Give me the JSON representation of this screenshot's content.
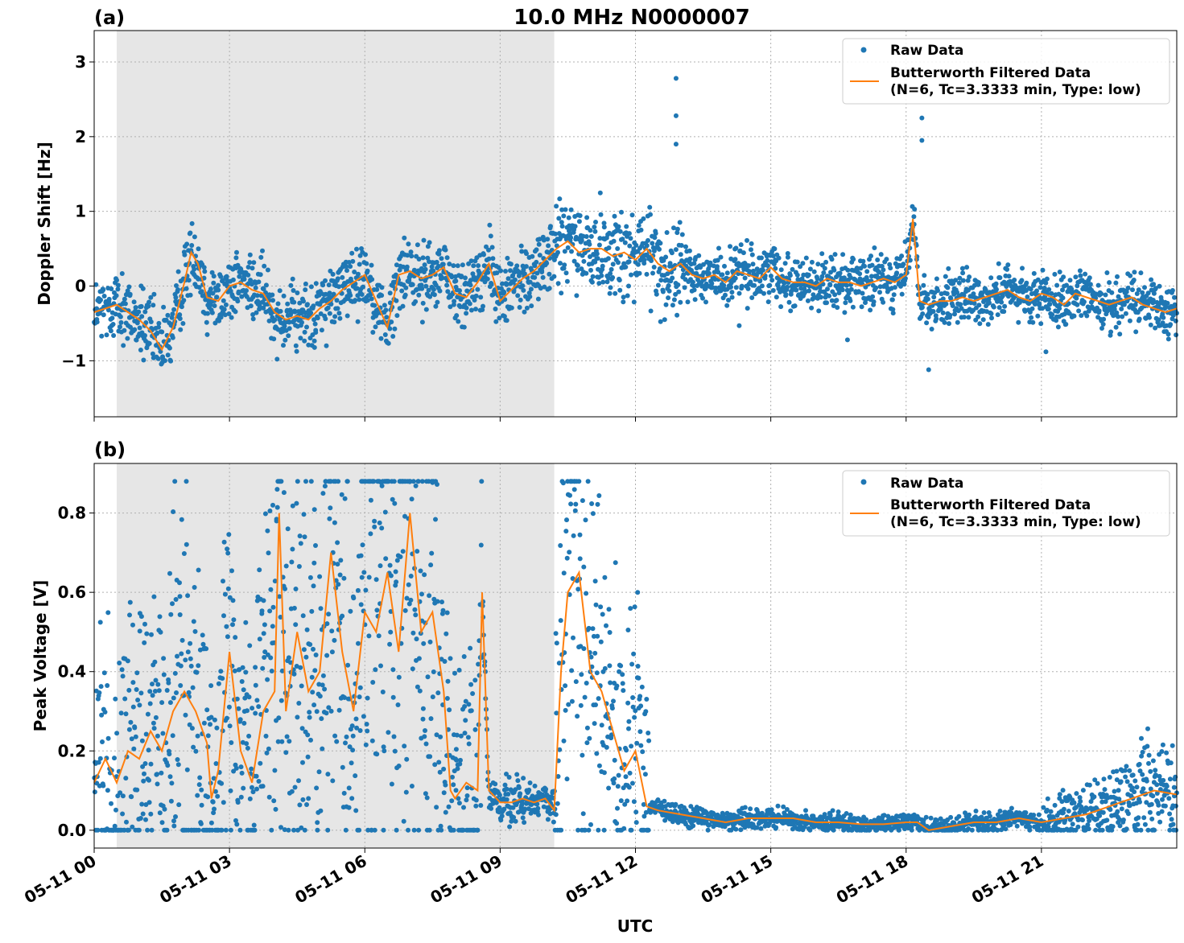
{
  "figure": {
    "title": "10.0 MHz N0000007",
    "xlabel": "UTC"
  },
  "legend": {
    "raw_label": "Raw Data",
    "filtered_label_line1": "Butterworth Filtered Data",
    "filtered_label_line2": "(N=6, Tc=3.3333 min, Type: low)"
  },
  "colors": {
    "raw": "#1f77b4",
    "filtered": "#ff7f0e",
    "shade": "#e6e6e6",
    "grid": "#b0b0b0"
  },
  "chart_data": [
    {
      "type": "scatter",
      "panel_label": "(a)",
      "ylabel": "Doppler Shift [Hz]",
      "xlim": [
        0,
        24
      ],
      "ylim": [
        -1.75,
        3.42
      ],
      "x_unit": "hours UTC on 05-11",
      "x_ticks": [
        0,
        3,
        6,
        9,
        12,
        15,
        18,
        21
      ],
      "x_tick_labels": [
        "05-11 00",
        "05-11 03",
        "05-11 06",
        "05-11 09",
        "05-11 12",
        "05-11 15",
        "05-11 18",
        "05-11 21"
      ],
      "y_ticks": [
        -1,
        0,
        1,
        2,
        3
      ],
      "y_tick_labels": [
        "−1",
        "0",
        "1",
        "2",
        "3"
      ],
      "grid": true,
      "legend_position": "top-right",
      "shaded_x_range": [
        0.5,
        10.2
      ],
      "series": [
        {
          "name": "Butterworth Filtered Data",
          "x": [
            0,
            0.25,
            0.5,
            0.75,
            1.0,
            1.25,
            1.5,
            1.75,
            2.0,
            2.15,
            2.3,
            2.5,
            2.75,
            3.0,
            3.25,
            3.5,
            3.75,
            4.0,
            4.25,
            4.5,
            4.75,
            5.0,
            5.25,
            5.5,
            5.75,
            6.0,
            6.25,
            6.5,
            6.75,
            7.0,
            7.25,
            7.5,
            7.75,
            8.0,
            8.25,
            8.5,
            8.75,
            9.0,
            9.25,
            9.5,
            9.75,
            10.0,
            10.25,
            10.5,
            10.75,
            11.0,
            11.25,
            11.5,
            11.75,
            12.0,
            12.25,
            12.5,
            12.75,
            13.0,
            13.25,
            13.5,
            13.75,
            14.0,
            14.25,
            14.5,
            14.75,
            15.0,
            15.25,
            15.5,
            15.75,
            16.0,
            16.25,
            16.5,
            16.75,
            17.0,
            17.25,
            17.5,
            17.75,
            18.0,
            18.15,
            18.3,
            18.5,
            18.75,
            19.0,
            19.25,
            19.5,
            19.75,
            20.0,
            20.25,
            20.5,
            20.75,
            21.0,
            21.25,
            21.5,
            21.75,
            22.0,
            22.25,
            22.5,
            22.75,
            23.0,
            23.25,
            23.5,
            23.75,
            24.0
          ],
          "y": [
            -0.35,
            -0.3,
            -0.25,
            -0.35,
            -0.45,
            -0.6,
            -0.85,
            -0.55,
            0.05,
            0.45,
            0.3,
            -0.15,
            -0.2,
            0.0,
            0.05,
            -0.05,
            -0.1,
            -0.35,
            -0.45,
            -0.4,
            -0.45,
            -0.3,
            -0.2,
            -0.05,
            0.05,
            0.15,
            -0.2,
            -0.55,
            0.15,
            0.2,
            0.1,
            0.15,
            0.25,
            -0.1,
            -0.15,
            0.05,
            0.3,
            -0.2,
            -0.05,
            0.1,
            0.2,
            0.35,
            0.5,
            0.6,
            0.45,
            0.5,
            0.5,
            0.4,
            0.45,
            0.35,
            0.5,
            0.3,
            0.2,
            0.3,
            0.15,
            0.1,
            0.15,
            0.05,
            0.2,
            0.15,
            0.1,
            0.25,
            0.1,
            0.05,
            0.05,
            0.0,
            0.1,
            0.05,
            0.05,
            0.0,
            0.05,
            0.1,
            0.05,
            0.15,
            0.9,
            -0.2,
            -0.25,
            -0.2,
            -0.2,
            -0.15,
            -0.2,
            -0.15,
            -0.1,
            -0.05,
            -0.15,
            -0.2,
            -0.1,
            -0.15,
            -0.25,
            -0.1,
            -0.15,
            -0.2,
            -0.25,
            -0.2,
            -0.15,
            -0.25,
            -0.3,
            -0.35,
            -0.3
          ]
        },
        {
          "name": "Raw Data",
          "outliers": [
            [
              12.9,
              2.78
            ],
            [
              12.9,
              2.28
            ],
            [
              12.9,
              1.9
            ],
            [
              18.35,
              2.25
            ],
            [
              18.35,
              1.95
            ],
            [
              18.5,
              -1.12
            ],
            [
              21.1,
              -0.88
            ],
            [
              14.3,
              -0.53
            ],
            [
              16.7,
              -0.72
            ]
          ]
        }
      ]
    },
    {
      "type": "scatter",
      "panel_label": "(b)",
      "ylabel": "Peak Voltage [V]",
      "xlim": [
        0,
        24
      ],
      "ylim": [
        -0.045,
        0.925
      ],
      "x_unit": "hours UTC on 05-11",
      "x_ticks": [
        0,
        3,
        6,
        9,
        12,
        15,
        18,
        21
      ],
      "x_tick_labels": [
        "05-11 00",
        "05-11 03",
        "05-11 06",
        "05-11 09",
        "05-11 12",
        "05-11 15",
        "05-11 18",
        "05-11 21"
      ],
      "y_ticks": [
        0.0,
        0.2,
        0.4,
        0.6,
        0.8
      ],
      "y_tick_labels": [
        "0.0",
        "0.2",
        "0.4",
        "0.6",
        "0.8"
      ],
      "grid": true,
      "legend_position": "top-right",
      "shaded_x_range": [
        0.5,
        10.2
      ],
      "series": [
        {
          "name": "Butterworth Filtered Data",
          "x": [
            0,
            0.25,
            0.5,
            0.75,
            1.0,
            1.25,
            1.5,
            1.75,
            2.0,
            2.25,
            2.5,
            2.6,
            2.75,
            3.0,
            3.25,
            3.5,
            3.75,
            4.0,
            4.1,
            4.25,
            4.5,
            4.75,
            5.0,
            5.25,
            5.5,
            5.75,
            6.0,
            6.25,
            6.5,
            6.75,
            7.0,
            7.25,
            7.5,
            7.75,
            7.9,
            8.0,
            8.25,
            8.5,
            8.6,
            8.75,
            9.0,
            9.25,
            9.5,
            9.75,
            10.0,
            10.2,
            10.35,
            10.5,
            10.75,
            11.0,
            11.25,
            11.5,
            11.75,
            12.0,
            12.25,
            12.5,
            13.0,
            13.5,
            14.0,
            14.5,
            15.0,
            15.5,
            16.0,
            16.5,
            17.0,
            17.5,
            18.0,
            18.25,
            18.5,
            19.0,
            19.5,
            20.0,
            20.5,
            21.0,
            21.5,
            22.0,
            22.5,
            23.0,
            23.5,
            24.0
          ],
          "y": [
            0.12,
            0.18,
            0.12,
            0.2,
            0.18,
            0.25,
            0.2,
            0.3,
            0.35,
            0.3,
            0.22,
            0.08,
            0.15,
            0.45,
            0.2,
            0.12,
            0.3,
            0.35,
            0.8,
            0.3,
            0.5,
            0.35,
            0.4,
            0.7,
            0.45,
            0.3,
            0.55,
            0.5,
            0.65,
            0.45,
            0.8,
            0.5,
            0.55,
            0.35,
            0.1,
            0.08,
            0.12,
            0.1,
            0.6,
            0.1,
            0.07,
            0.07,
            0.08,
            0.07,
            0.08,
            0.05,
            0.4,
            0.6,
            0.65,
            0.4,
            0.35,
            0.25,
            0.15,
            0.2,
            0.06,
            0.05,
            0.04,
            0.03,
            0.02,
            0.03,
            0.03,
            0.03,
            0.02,
            0.02,
            0.015,
            0.015,
            0.02,
            0.02,
            0.0,
            0.01,
            0.02,
            0.02,
            0.03,
            0.02,
            0.03,
            0.04,
            0.06,
            0.08,
            0.1,
            0.09
          ]
        },
        {
          "name": "Raw Data"
        }
      ]
    }
  ]
}
